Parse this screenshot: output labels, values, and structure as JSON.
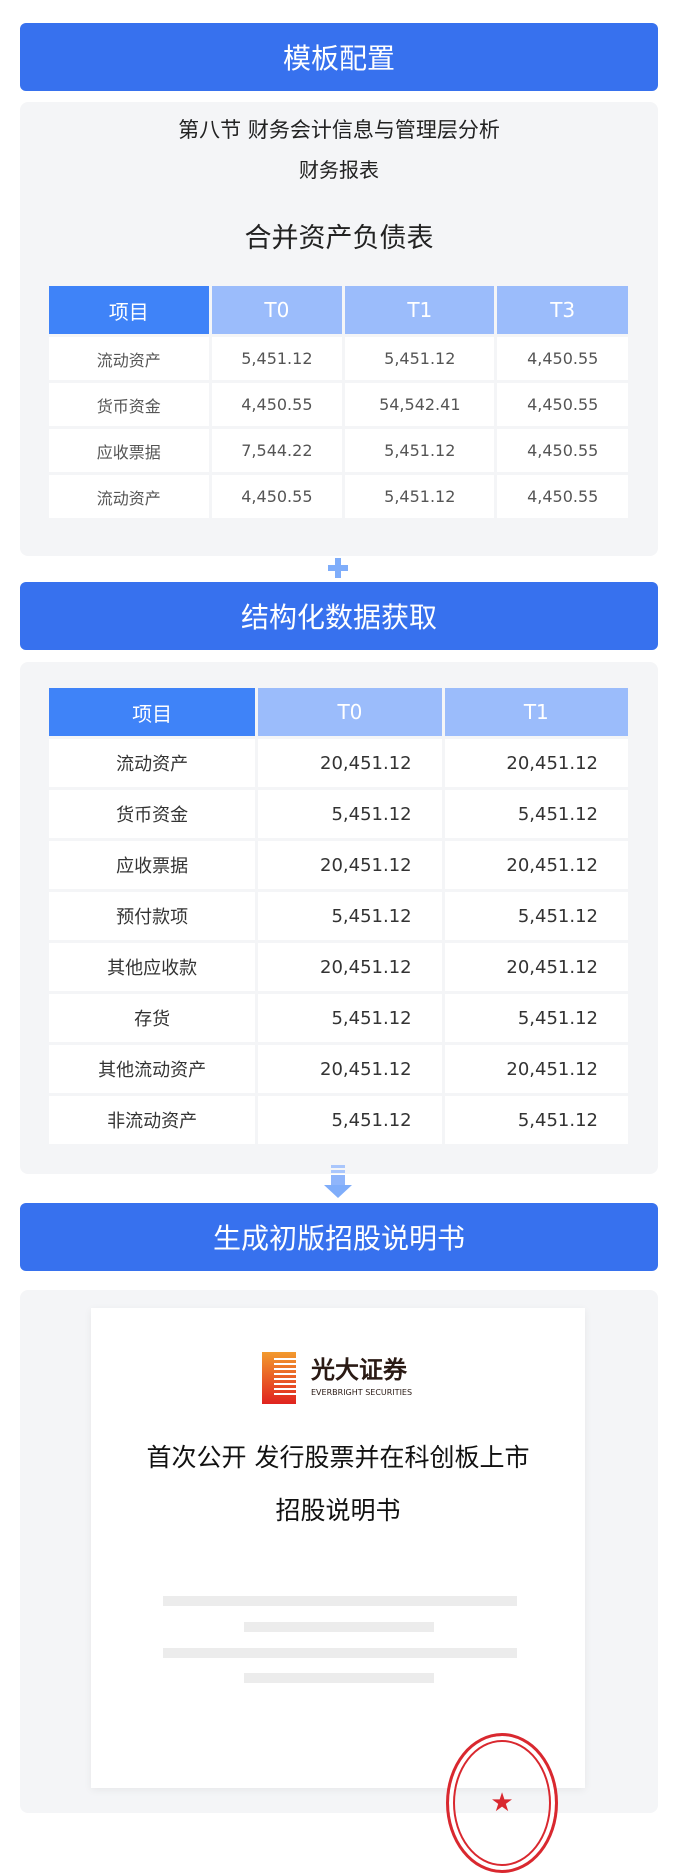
{
  "sections": {
    "template": "模板配置",
    "extract": "结构化数据获取",
    "generate": "生成初版招股说明书"
  },
  "template_panel": {
    "heading": "第八节 财务会计信息与管理层分析",
    "subheading": "财务报表",
    "table_title": "合并资产负债表",
    "columns": [
      "项目",
      "T0",
      "T1",
      "T3"
    ],
    "rows": [
      [
        "流动资产",
        "5,451.12",
        "5,451.12",
        "4,450.55"
      ],
      [
        "货币资金",
        "4,450.55",
        "54,542.41",
        "4,450.55"
      ],
      [
        "应收票据",
        "7,544.22",
        "5,451.12",
        "4,450.55"
      ],
      [
        "流动资产",
        "4,450.55",
        "5,451.12",
        "4,450.55"
      ]
    ]
  },
  "extract_panel": {
    "columns": [
      "项目",
      "T0",
      "T1"
    ],
    "rows": [
      [
        "流动资产",
        "20,451.12",
        "20,451.12"
      ],
      [
        "货币资金",
        "5,451.12",
        "5,451.12"
      ],
      [
        "应收票据",
        "20,451.12",
        "20,451.12"
      ],
      [
        "预付款项",
        "5,451.12",
        "5,451.12"
      ],
      [
        "其他应收款",
        "20,451.12",
        "20,451.12"
      ],
      [
        "存货",
        "5,451.12",
        "5,451.12"
      ],
      [
        "其他流动资产",
        "20,451.12",
        "20,451.12"
      ],
      [
        "非流动资产",
        "5,451.12",
        "5,451.12"
      ]
    ]
  },
  "document": {
    "logo_cn": "光大证券",
    "logo_en": "EVERBRIGHT SECURITIES",
    "title_line1": "首次公开 发行股票并在科创板上市",
    "title_line2": "招股说明书"
  },
  "colors": {
    "accent": "#3771ee",
    "header_light": "#9bbcfb",
    "stamp": "#d9282f"
  },
  "icons": {
    "plus": "plus-icon",
    "arrow": "arrow-down-icon",
    "stamp": "seal-stamp-icon"
  }
}
